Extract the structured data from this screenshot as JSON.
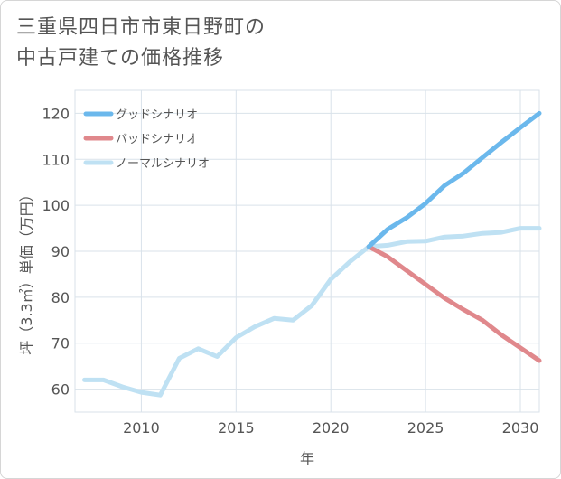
{
  "chart_data": {
    "type": "line",
    "title_lines": [
      "三重県四日市市東日野町の",
      "中古戸建ての価格推移"
    ],
    "xlabel": "年",
    "ylabel": "坪（3.3㎡）単価（万円）",
    "xlim": [
      2006.5,
      2031
    ],
    "ylim": [
      55,
      125
    ],
    "xticks": [
      2010,
      2015,
      2020,
      2025,
      2030
    ],
    "yticks": [
      60,
      70,
      80,
      90,
      100,
      110,
      120
    ],
    "grid": true,
    "legend_position": "top-left",
    "series": [
      {
        "name": "グッドシナリオ",
        "color": "#6bb8ec",
        "x": [
          2022,
          2023,
          2024,
          2025,
          2026,
          2027,
          2028,
          2029,
          2030,
          2031
        ],
        "values": [
          91,
          94.8,
          97.3,
          100.4,
          104.3,
          107,
          110.4,
          113.7,
          116.9,
          120
        ]
      },
      {
        "name": "バッドシナリオ",
        "color": "#e0888c",
        "x": [
          2022,
          2023,
          2024,
          2025,
          2026,
          2027,
          2028,
          2029,
          2030,
          2031
        ],
        "values": [
          91,
          88.8,
          85.8,
          82.8,
          79.8,
          77.3,
          75,
          71.8,
          69,
          66.2
        ]
      },
      {
        "name": "ノーマルシナリオ",
        "color": "#bfe1f3",
        "x": [
          2007,
          2008,
          2009,
          2010,
          2011,
          2012,
          2013,
          2014,
          2015,
          2016,
          2017,
          2018,
          2019,
          2020,
          2021,
          2022,
          2023,
          2024,
          2025,
          2026,
          2027,
          2028,
          2029,
          2030,
          2031
        ],
        "values": [
          62,
          62,
          60.5,
          59.3,
          58.7,
          66.7,
          68.8,
          67.1,
          71.2,
          73.6,
          75.4,
          75,
          78.2,
          83.9,
          87.7,
          91,
          91.3,
          92.1,
          92.2,
          93.1,
          93.3,
          93.9,
          94.1,
          95,
          95
        ]
      }
    ]
  }
}
